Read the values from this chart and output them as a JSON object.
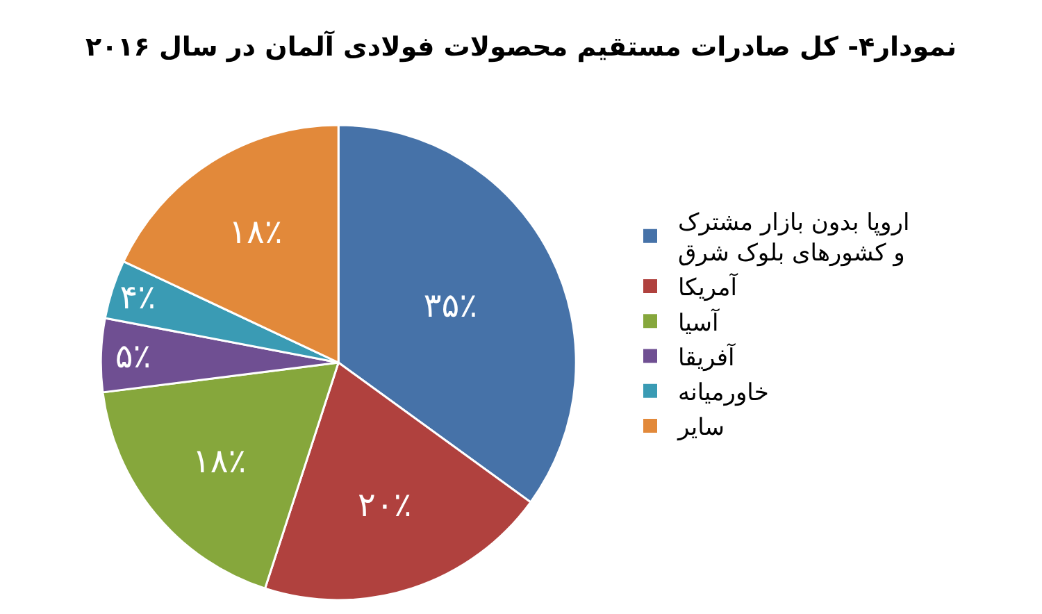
{
  "chart_data": {
    "type": "pie",
    "title": "نمودار۴- کل صادرات مستقیم محصولات فولادی آلمان در سال ۲۰۱۶",
    "categories": [
      "اروپا بدون بازار مشترک\nو کشورهای بلوک شرق",
      "آمریکا",
      "آسیا",
      "آفریقا",
      "خاورمیانه",
      "سایر"
    ],
    "values": [
      35,
      20,
      18,
      5,
      4,
      18
    ],
    "value_labels": [
      "۳۵٪",
      "۲۰٪",
      "۱۸٪",
      "۵٪",
      "۴٪",
      "۱۸٪"
    ],
    "colors": [
      "#4672a8",
      "#b0413e",
      "#86a73c",
      "#6f4f92",
      "#3a9bb4",
      "#e2893a"
    ],
    "legend": "right"
  }
}
